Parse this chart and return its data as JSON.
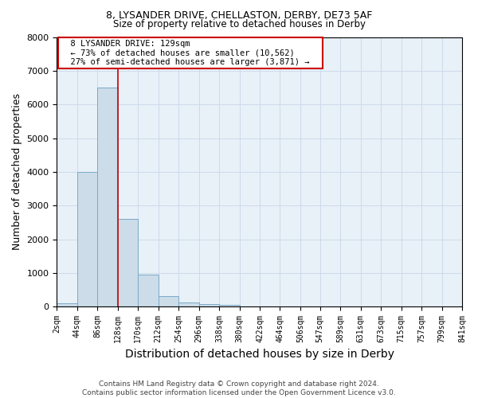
{
  "title_line1": "8, LYSANDER DRIVE, CHELLASTON, DERBY, DE73 5AF",
  "title_line2": "Size of property relative to detached houses in Derby",
  "xlabel": "Distribution of detached houses by size in Derby",
  "ylabel": "Number of detached properties",
  "footnote1": "Contains HM Land Registry data © Crown copyright and database right 2024.",
  "footnote2": "Contains public sector information licensed under the Open Government Licence v3.0.",
  "bar_values": [
    100,
    4000,
    6500,
    2600,
    950,
    300,
    120,
    80,
    60,
    0,
    0,
    0,
    0,
    0,
    0,
    0,
    0,
    0,
    0,
    0
  ],
  "bin_edges": [
    2,
    44,
    86,
    128,
    170,
    212,
    254,
    296,
    338,
    380,
    422,
    464,
    506,
    547,
    589,
    631,
    673,
    715,
    757,
    799,
    841
  ],
  "x_tick_labels": [
    "2sqm",
    "44sqm",
    "86sqm",
    "128sqm",
    "170sqm",
    "212sqm",
    "254sqm",
    "296sqm",
    "338sqm",
    "380sqm",
    "422sqm",
    "464sqm",
    "506sqm",
    "547sqm",
    "589sqm",
    "631sqm",
    "673sqm",
    "715sqm",
    "757sqm",
    "799sqm",
    "841sqm"
  ],
  "ylim": [
    0,
    8000
  ],
  "bar_color": "#ccdce8",
  "bar_edge_color": "#7aaac8",
  "red_line_x": 128,
  "annotation_text": "  8 LYSANDER DRIVE: 129sqm  \n  ← 73% of detached houses are smaller (10,562)  \n  27% of semi-detached houses are larger (3,871) →  ",
  "annotation_box_color": "#ffffff",
  "annotation_box_edge_color": "#cc0000",
  "annotation_text_color": "#000000",
  "red_line_color": "#cc0000",
  "grid_color": "#c8d8e8",
  "background_color": "#e8f0f8",
  "title_fontsize": 9,
  "subtitle_fontsize": 8.5,
  "axis_label_fontsize": 9,
  "tick_fontsize": 7,
  "annotation_fontsize": 7.5,
  "footnote_fontsize": 6.5
}
